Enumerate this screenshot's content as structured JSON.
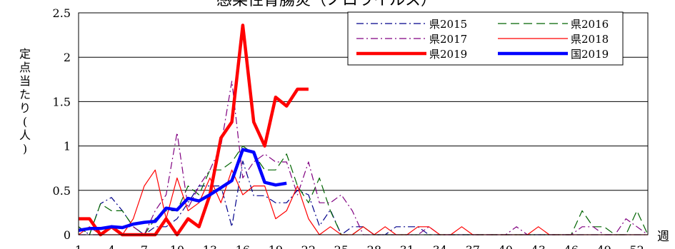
{
  "chart_data": {
    "type": "line",
    "title": "感染性胃腸炎（ノロウイルス）",
    "ylabel": "定点当たり(人)",
    "xlabel": "週",
    "ylim": [
      0,
      2.5
    ],
    "yticks": [
      "0",
      "0.5",
      "1",
      "1.5",
      "2",
      "2.5"
    ],
    "xticks": [
      "1",
      "4",
      "7",
      "10",
      "13",
      "16",
      "19",
      "22",
      "25",
      "28",
      "31",
      "34",
      "37",
      "40",
      "43",
      "46",
      "49",
      "52"
    ],
    "xlim": [
      1,
      53
    ],
    "legend_position": "top-right",
    "series": [
      {
        "name": "県2015",
        "color": "#00008B",
        "dash": "dashdot",
        "width": 1.2,
        "x": [
          1,
          2,
          3,
          4,
          5,
          6,
          7,
          8,
          9,
          10,
          11,
          12,
          13,
          14,
          15,
          16,
          17,
          18,
          19,
          20,
          21,
          22,
          23,
          24,
          25,
          26,
          27,
          28,
          29,
          30,
          31,
          32,
          33,
          34,
          35,
          36,
          37,
          38,
          39,
          40,
          41,
          42,
          43,
          44,
          45,
          46,
          47,
          48,
          49,
          50,
          51,
          52,
          53
        ],
        "values": [
          0.09,
          0.0,
          0.35,
          0.42,
          0.27,
          0.09,
          0.0,
          0.09,
          0.09,
          0.18,
          0.36,
          0.55,
          0.55,
          0.55,
          0.09,
          0.83,
          0.44,
          0.44,
          0.36,
          0.36,
          0.5,
          0.45,
          0.1,
          0.28,
          0.0,
          0.09,
          0.09,
          0.0,
          0.0,
          0.09,
          0.09,
          0.09,
          0.0,
          0.0,
          0.0,
          0.0,
          0.0,
          0.0,
          0.0,
          0.0,
          0.0,
          0.0,
          0.0,
          0.0,
          0.0,
          0.0,
          0.0,
          0.0,
          0.0,
          0.0,
          0.0,
          0.0,
          0.0
        ]
      },
      {
        "name": "県2016",
        "color": "#006400",
        "dash": "dash",
        "width": 1.2,
        "x": [
          1,
          2,
          3,
          4,
          5,
          6,
          7,
          8,
          9,
          10,
          11,
          12,
          13,
          14,
          15,
          16,
          17,
          18,
          19,
          20,
          21,
          22,
          23,
          24,
          25,
          26,
          27,
          28,
          29,
          30,
          31,
          32,
          33,
          34,
          35,
          36,
          37,
          38,
          39,
          40,
          41,
          42,
          43,
          44,
          45,
          46,
          47,
          48,
          49,
          50,
          51,
          52,
          53
        ],
        "values": [
          0.09,
          0.0,
          0.35,
          0.27,
          0.27,
          0.09,
          0.0,
          0.18,
          0.27,
          0.27,
          0.55,
          0.45,
          0.73,
          0.73,
          0.82,
          1.0,
          0.91,
          0.73,
          0.73,
          0.91,
          0.55,
          0.36,
          0.64,
          0.27,
          0.0,
          0.0,
          0.09,
          0.0,
          0.0,
          0.0,
          0.0,
          0.0,
          0.0,
          0.0,
          0.0,
          0.0,
          0.0,
          0.0,
          0.0,
          0.0,
          0.0,
          0.0,
          0.0,
          0.0,
          0.0,
          0.0,
          0.27,
          0.09,
          0.09,
          0.0,
          0.0,
          0.27,
          0.0
        ]
      },
      {
        "name": "県2017",
        "color": "#800080",
        "dash": "dashdot",
        "width": 1.2,
        "x": [
          1,
          2,
          3,
          4,
          5,
          6,
          7,
          8,
          9,
          10,
          11,
          12,
          13,
          14,
          15,
          16,
          17,
          18,
          19,
          20,
          21,
          22,
          23,
          24,
          25,
          26,
          27,
          28,
          29,
          30,
          31,
          32,
          33,
          34,
          35,
          36,
          37,
          38,
          39,
          40,
          41,
          42,
          43,
          44,
          45,
          46,
          47,
          48,
          49,
          50,
          51,
          52,
          53
        ],
        "values": [
          0.0,
          0.0,
          0.0,
          0.09,
          0.09,
          0.09,
          0.0,
          0.27,
          0.45,
          1.15,
          0.3,
          0.55,
          0.73,
          1.0,
          1.73,
          0.64,
          0.82,
          0.91,
          0.82,
          0.82,
          0.45,
          0.82,
          0.36,
          0.36,
          0.45,
          0.27,
          0.0,
          0.0,
          0.0,
          0.0,
          0.0,
          0.0,
          0.09,
          0.0,
          0.0,
          0.0,
          0.0,
          0.0,
          0.0,
          0.0,
          0.09,
          0.0,
          0.0,
          0.0,
          0.0,
          0.0,
          0.09,
          0.09,
          0.0,
          0.0,
          0.18,
          0.09,
          0.0
        ]
      },
      {
        "name": "県2018",
        "color": "#FF0000",
        "dash": "solid",
        "width": 1.2,
        "x": [
          1,
          2,
          3,
          4,
          5,
          6,
          7,
          8,
          9,
          10,
          11,
          12,
          13,
          14,
          15,
          16,
          17,
          18,
          19,
          20,
          21,
          22,
          23,
          24,
          25,
          26,
          27,
          28,
          29,
          30,
          31,
          32,
          33,
          34,
          35,
          36,
          37,
          38,
          39,
          40,
          41,
          42,
          43,
          44,
          45,
          46,
          47,
          48,
          49,
          50,
          51,
          52,
          53
        ],
        "values": [
          0.0,
          0.09,
          0.0,
          0.0,
          0.0,
          0.18,
          0.55,
          0.73,
          0.18,
          0.64,
          0.27,
          0.36,
          0.64,
          0.36,
          0.73,
          0.45,
          0.55,
          0.55,
          0.18,
          0.27,
          0.55,
          0.18,
          0.0,
          0.09,
          0.0,
          0.0,
          0.09,
          0.0,
          0.09,
          0.0,
          0.0,
          0.09,
          0.09,
          0.0,
          0.0,
          0.09,
          0.0,
          0.0,
          0.0,
          0.0,
          0.0,
          0.0,
          0.09,
          0.0,
          0.0,
          0.0,
          0.0,
          0.0,
          0.0,
          0.0,
          0.0,
          0.0,
          0.0
        ]
      },
      {
        "name": "県2019",
        "color": "#FF0000",
        "dash": "solid",
        "width": 4.5,
        "x": [
          1,
          2,
          3,
          4,
          5,
          6,
          7,
          8,
          9,
          10,
          11,
          12,
          13,
          14,
          15,
          16,
          17,
          18,
          19,
          20,
          21,
          22
        ],
        "values": [
          0.18,
          0.18,
          0.0,
          0.09,
          0.0,
          0.0,
          0.0,
          0.0,
          0.18,
          0.0,
          0.18,
          0.09,
          0.45,
          1.09,
          1.27,
          2.36,
          1.27,
          1.0,
          1.55,
          1.45,
          1.64,
          1.64
        ]
      },
      {
        "name": "国2019",
        "color": "#0000FF",
        "dash": "solid",
        "width": 4.5,
        "x": [
          1,
          2,
          3,
          4,
          5,
          6,
          7,
          8,
          9,
          10,
          11,
          12,
          13,
          14,
          15,
          16,
          17,
          18,
          19,
          20
        ],
        "values": [
          0.05,
          0.07,
          0.07,
          0.09,
          0.08,
          0.12,
          0.14,
          0.15,
          0.3,
          0.28,
          0.41,
          0.38,
          0.45,
          0.53,
          0.61,
          0.96,
          0.93,
          0.59,
          0.56,
          0.58
        ]
      }
    ]
  }
}
